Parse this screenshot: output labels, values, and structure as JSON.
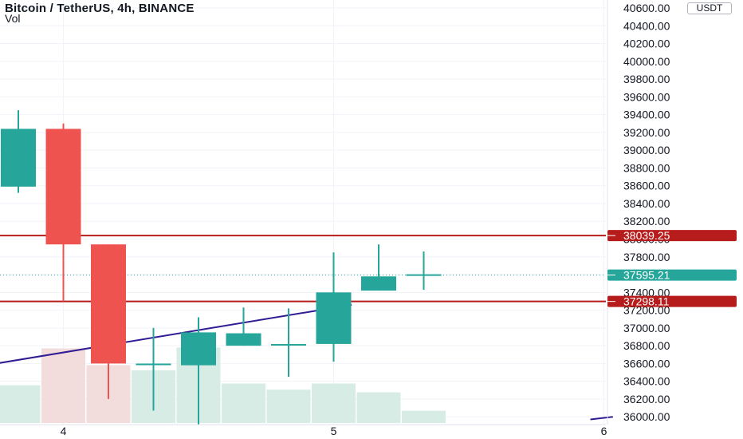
{
  "header": {
    "title": "Bitcoin / TetherUS, 4h, BINANCE",
    "indicator": "Vol",
    "currency": "USDT"
  },
  "colors": {
    "up": "#26a69a",
    "down": "#ef5350",
    "up_volume": "#d7ece4",
    "down_volume": "#f2dcdc",
    "level_line": "#b71c1c",
    "trend_line": "#311b92",
    "price_line": "#26a69a"
  },
  "chart_data": {
    "type": "candlestick",
    "timeframe": "4h",
    "ylim": [
      35930,
      40690
    ],
    "y_ticks": [
      36000,
      36200,
      36400,
      36600,
      36800,
      37000,
      37200,
      37400,
      37600,
      37800,
      38000,
      38200,
      38400,
      38600,
      38800,
      39000,
      39200,
      39400,
      39600,
      39800,
      40000,
      40200,
      40400,
      40600
    ],
    "x_ticks": [
      {
        "label": "4",
        "index": 1.0
      },
      {
        "label": "5",
        "index": 7.0
      },
      {
        "label": "6",
        "index": 13.0
      }
    ],
    "candles": [
      {
        "open": 38590,
        "high": 39450,
        "low": 38520,
        "close": 39240
      },
      {
        "open": 39240,
        "high": 39300,
        "low": 37300,
        "close": 37940
      },
      {
        "open": 37940,
        "high": 37940,
        "low": 36200,
        "close": 36600
      },
      {
        "open": 36590,
        "high": 37000,
        "low": 36070,
        "close": 36590
      },
      {
        "open": 36580,
        "high": 37120,
        "low": 35910,
        "close": 36950
      },
      {
        "open": 36800,
        "high": 37230,
        "low": 36800,
        "close": 36940
      },
      {
        "open": 36810,
        "high": 37220,
        "low": 36450,
        "close": 36810
      },
      {
        "open": 36820,
        "high": 37850,
        "low": 36620,
        "close": 37400
      },
      {
        "open": 37420,
        "high": 37940,
        "low": 37420,
        "close": 37580
      },
      {
        "open": 37590,
        "high": 37860,
        "low": 37430,
        "close": 37595.21
      }
    ],
    "volume_relative": [
      0.43,
      0.85,
      0.66,
      0.6,
      0.86,
      0.45,
      0.38,
      0.45,
      0.35,
      0.14
    ],
    "horizontal_levels": [
      {
        "value": 38039.25,
        "label": "38039.25"
      },
      {
        "value": 37298.11,
        "label": "37298.11"
      }
    ],
    "last_price": {
      "value": 37595.21,
      "label": "37595.21"
    },
    "trend_line": {
      "from": {
        "index": -1.2,
        "price": 36540
      },
      "to": {
        "index": 7.4,
        "price": 37260
      }
    },
    "trend_line_2": {
      "from": {
        "index": 12.7,
        "price": 35970
      },
      "to": {
        "index": 13.2,
        "price": 36000
      }
    }
  }
}
